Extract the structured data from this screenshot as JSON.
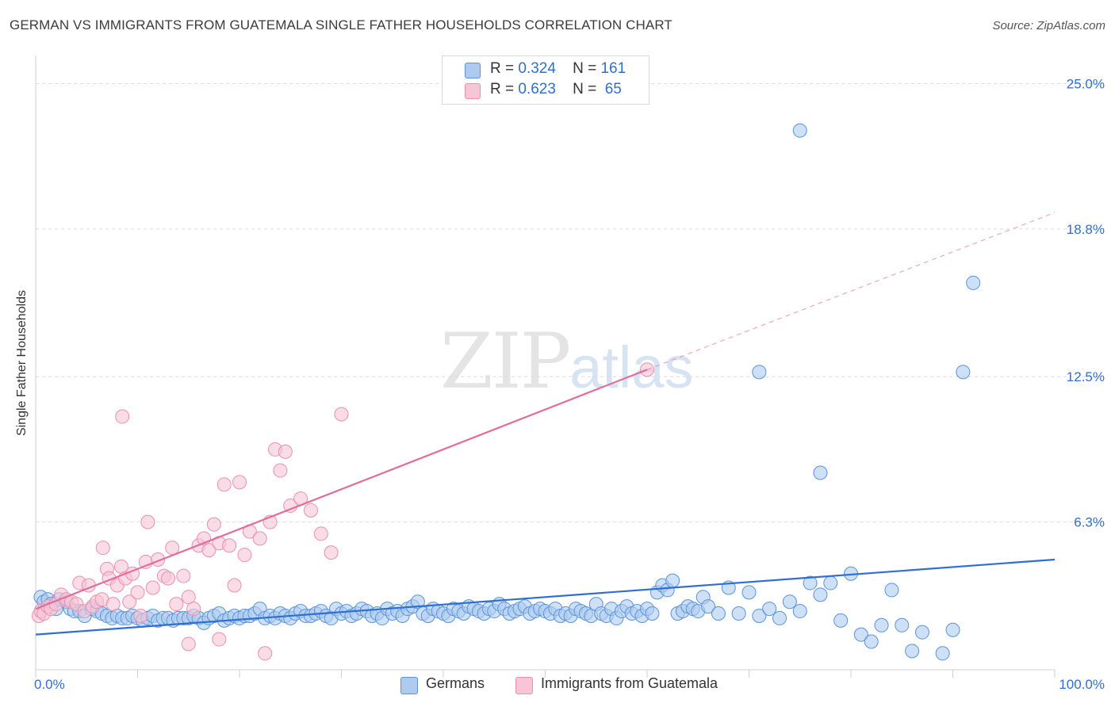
{
  "title": "GERMAN VS IMMIGRANTS FROM GUATEMALA SINGLE FATHER HOUSEHOLDS CORRELATION CHART",
  "source": "Source: ZipAtlas.com",
  "watermark": {
    "zip": "ZIP",
    "atlas": "atlas"
  },
  "legend_top": {
    "rows": [
      {
        "r_label": "R =",
        "r_value": "0.324",
        "n_label": "N =",
        "n_value": "161"
      },
      {
        "r_label": "R =",
        "r_value": "0.623",
        "n_label": "N =",
        "n_value": "65"
      }
    ]
  },
  "colors": {
    "blue_fill": "#aecbef",
    "blue_stroke": "#5b93db",
    "blue_line": "#2f6fd1",
    "pink_fill": "#f7c5d6",
    "pink_stroke": "#ea90ae",
    "pink_line": "#e36d98",
    "grid": "#dcdcdc",
    "axis_text": "#2f6fd1"
  },
  "chart_data": {
    "type": "scatter",
    "title": "GERMAN VS IMMIGRANTS FROM GUATEMALA SINGLE FATHER HOUSEHOLDS CORRELATION CHART",
    "xlabel": "",
    "ylabel": "Single Father Households",
    "xlim": [
      0,
      100
    ],
    "ylim": [
      0,
      26.2
    ],
    "x_tick_labels": [
      "0.0%",
      "100.0%"
    ],
    "y_ticks": [
      6.3,
      12.5,
      18.8,
      25.0
    ],
    "y_tick_labels": [
      "6.3%",
      "12.5%",
      "18.8%",
      "25.0%"
    ],
    "grid": true,
    "legend_position": "top-center",
    "series": [
      {
        "name": "Germans",
        "color": "#5b93db",
        "stats": {
          "R": 0.324,
          "N": 161
        },
        "trend": {
          "x": [
            0,
            100
          ],
          "y": [
            1.5,
            4.7
          ]
        },
        "points": [
          [
            0.5,
            3.1
          ],
          [
            0.8,
            2.9
          ],
          [
            1.2,
            3.0
          ],
          [
            1.5,
            2.8
          ],
          [
            2,
            2.6
          ],
          [
            2.3,
            3.0
          ],
          [
            3,
            2.9
          ],
          [
            3.4,
            2.6
          ],
          [
            3.8,
            2.5
          ],
          [
            4.3,
            2.5
          ],
          [
            4.8,
            2.3
          ],
          [
            5.5,
            2.6
          ],
          [
            6,
            2.5
          ],
          [
            6.5,
            2.4
          ],
          [
            7,
            2.3
          ],
          [
            7.5,
            2.2
          ],
          [
            8,
            2.3
          ],
          [
            8.5,
            2.2
          ],
          [
            9,
            2.2
          ],
          [
            9.5,
            2.3
          ],
          [
            10,
            2.2
          ],
          [
            10.5,
            2.1
          ],
          [
            11,
            2.2
          ],
          [
            11.5,
            2.3
          ],
          [
            12,
            2.1
          ],
          [
            12.5,
            2.2
          ],
          [
            13,
            2.2
          ],
          [
            13.5,
            2.1
          ],
          [
            14,
            2.2
          ],
          [
            14.5,
            2.2
          ],
          [
            15,
            2.2
          ],
          [
            15.5,
            2.3
          ],
          [
            16,
            2.2
          ],
          [
            16.5,
            2.0
          ],
          [
            17,
            2.2
          ],
          [
            17.5,
            2.3
          ],
          [
            18,
            2.4
          ],
          [
            18.5,
            2.1
          ],
          [
            19,
            2.2
          ],
          [
            19.5,
            2.3
          ],
          [
            20,
            2.2
          ],
          [
            20.5,
            2.3
          ],
          [
            21,
            2.3
          ],
          [
            21.5,
            2.4
          ],
          [
            22,
            2.6
          ],
          [
            22.5,
            2.2
          ],
          [
            23,
            2.3
          ],
          [
            23.5,
            2.2
          ],
          [
            24,
            2.4
          ],
          [
            24.5,
            2.3
          ],
          [
            25,
            2.2
          ],
          [
            25.5,
            2.4
          ],
          [
            26,
            2.5
          ],
          [
            26.5,
            2.3
          ],
          [
            27,
            2.3
          ],
          [
            27.5,
            2.4
          ],
          [
            28,
            2.5
          ],
          [
            28.5,
            2.3
          ],
          [
            29,
            2.2
          ],
          [
            29.5,
            2.6
          ],
          [
            30,
            2.4
          ],
          [
            30.5,
            2.5
          ],
          [
            31,
            2.3
          ],
          [
            31.5,
            2.4
          ],
          [
            32,
            2.6
          ],
          [
            32.5,
            2.5
          ],
          [
            33,
            2.3
          ],
          [
            33.5,
            2.4
          ],
          [
            34,
            2.2
          ],
          [
            34.5,
            2.6
          ],
          [
            35,
            2.4
          ],
          [
            35.5,
            2.5
          ],
          [
            36,
            2.3
          ],
          [
            36.5,
            2.6
          ],
          [
            37,
            2.7
          ],
          [
            37.5,
            2.9
          ],
          [
            38,
            2.4
          ],
          [
            38.5,
            2.3
          ],
          [
            39,
            2.6
          ],
          [
            39.5,
            2.5
          ],
          [
            40,
            2.4
          ],
          [
            40.5,
            2.3
          ],
          [
            41,
            2.6
          ],
          [
            41.5,
            2.5
          ],
          [
            42,
            2.4
          ],
          [
            42.5,
            2.7
          ],
          [
            43,
            2.6
          ],
          [
            43.5,
            2.5
          ],
          [
            44,
            2.4
          ],
          [
            44.5,
            2.6
          ],
          [
            45,
            2.5
          ],
          [
            45.5,
            2.8
          ],
          [
            46,
            2.6
          ],
          [
            46.5,
            2.4
          ],
          [
            47,
            2.5
          ],
          [
            47.5,
            2.6
          ],
          [
            48,
            2.7
          ],
          [
            48.5,
            2.4
          ],
          [
            49,
            2.5
          ],
          [
            49.5,
            2.6
          ],
          [
            50,
            2.5
          ],
          [
            50.5,
            2.4
          ],
          [
            51,
            2.6
          ],
          [
            51.5,
            2.3
          ],
          [
            52,
            2.4
          ],
          [
            52.5,
            2.3
          ],
          [
            53,
            2.6
          ],
          [
            53.5,
            2.5
          ],
          [
            54,
            2.4
          ],
          [
            54.5,
            2.3
          ],
          [
            55,
            2.8
          ],
          [
            55.5,
            2.4
          ],
          [
            56,
            2.3
          ],
          [
            56.5,
            2.6
          ],
          [
            57,
            2.2
          ],
          [
            57.5,
            2.5
          ],
          [
            58,
            2.7
          ],
          [
            58.5,
            2.4
          ],
          [
            59,
            2.5
          ],
          [
            59.5,
            2.3
          ],
          [
            60,
            2.6
          ],
          [
            60.5,
            2.4
          ],
          [
            61,
            3.3
          ],
          [
            61.5,
            3.6
          ],
          [
            62,
            3.4
          ],
          [
            62.5,
            3.8
          ],
          [
            63,
            2.4
          ],
          [
            63.5,
            2.5
          ],
          [
            64,
            2.7
          ],
          [
            64.5,
            2.6
          ],
          [
            65,
            2.5
          ],
          [
            65.5,
            3.1
          ],
          [
            66,
            2.7
          ],
          [
            67,
            2.4
          ],
          [
            68,
            3.5
          ],
          [
            69,
            2.4
          ],
          [
            70,
            3.3
          ],
          [
            71,
            2.3
          ],
          [
            72,
            2.6
          ],
          [
            73,
            2.2
          ],
          [
            74,
            2.9
          ],
          [
            75,
            2.5
          ],
          [
            76,
            3.7
          ],
          [
            77,
            3.2
          ],
          [
            78,
            3.7
          ],
          [
            79,
            2.1
          ],
          [
            80,
            4.1
          ],
          [
            81,
            1.5
          ],
          [
            82,
            1.2
          ],
          [
            83,
            1.9
          ],
          [
            84,
            3.4
          ],
          [
            85,
            1.9
          ],
          [
            86,
            0.8
          ],
          [
            87,
            1.6
          ],
          [
            89,
            0.7
          ],
          [
            90,
            1.7
          ],
          [
            91,
            12.7
          ],
          [
            75,
            23.0
          ],
          [
            92,
            16.5
          ],
          [
            77,
            8.4
          ],
          [
            71,
            12.7
          ]
        ]
      },
      {
        "name": "Immigrants from Guatemala",
        "color": "#ea90ae",
        "stats": {
          "R": 0.623,
          "N": 65
        },
        "trend": {
          "x": [
            0,
            60
          ],
          "y": [
            2.6,
            12.8
          ]
        },
        "trend_extension": {
          "x": [
            60,
            100
          ],
          "y": [
            12.8,
            19.5
          ]
        },
        "points": [
          [
            0.3,
            2.3
          ],
          [
            0.5,
            2.5
          ],
          [
            0.8,
            2.4
          ],
          [
            1.2,
            2.7
          ],
          [
            1.5,
            2.6
          ],
          [
            2,
            2.8
          ],
          [
            2.5,
            3.2
          ],
          [
            3,
            3.0
          ],
          [
            3.5,
            2.9
          ],
          [
            4,
            2.8
          ],
          [
            4.3,
            3.7
          ],
          [
            4.8,
            2.5
          ],
          [
            5.2,
            3.6
          ],
          [
            5.6,
            2.7
          ],
          [
            6,
            2.9
          ],
          [
            6.5,
            3.0
          ],
          [
            6.6,
            5.2
          ],
          [
            7,
            4.3
          ],
          [
            7.2,
            3.9
          ],
          [
            7.6,
            2.8
          ],
          [
            8,
            3.6
          ],
          [
            8.4,
            4.4
          ],
          [
            8.8,
            3.9
          ],
          [
            9.2,
            2.9
          ],
          [
            9.5,
            4.1
          ],
          [
            10,
            3.3
          ],
          [
            10.3,
            2.3
          ],
          [
            10.8,
            4.6
          ],
          [
            11,
            6.3
          ],
          [
            11.5,
            3.5
          ],
          [
            12,
            4.7
          ],
          [
            12.6,
            4.0
          ],
          [
            13,
            3.9
          ],
          [
            13.4,
            5.2
          ],
          [
            13.8,
            2.8
          ],
          [
            14.5,
            4.0
          ],
          [
            15,
            3.1
          ],
          [
            15.5,
            2.6
          ],
          [
            16,
            5.3
          ],
          [
            16.5,
            5.6
          ],
          [
            17,
            5.1
          ],
          [
            17.5,
            6.2
          ],
          [
            18,
            5.4
          ],
          [
            18.5,
            7.9
          ],
          [
            19,
            5.3
          ],
          [
            19.5,
            3.6
          ],
          [
            20,
            8.0
          ],
          [
            20.5,
            4.9
          ],
          [
            21,
            5.9
          ],
          [
            22,
            5.6
          ],
          [
            22.5,
            0.7
          ],
          [
            23,
            6.3
          ],
          [
            23.5,
            9.4
          ],
          [
            24,
            8.5
          ],
          [
            24.5,
            9.3
          ],
          [
            25,
            7.0
          ],
          [
            26,
            7.3
          ],
          [
            27,
            6.8
          ],
          [
            28,
            5.8
          ],
          [
            29,
            5.0
          ],
          [
            30,
            10.9
          ],
          [
            8.5,
            10.8
          ],
          [
            18,
            1.3
          ],
          [
            15,
            1.1
          ],
          [
            60,
            12.8
          ]
        ]
      }
    ]
  },
  "legend_bottom": {
    "items": [
      {
        "label": "Germans"
      },
      {
        "label": "Immigrants from Guatemala"
      }
    ]
  }
}
